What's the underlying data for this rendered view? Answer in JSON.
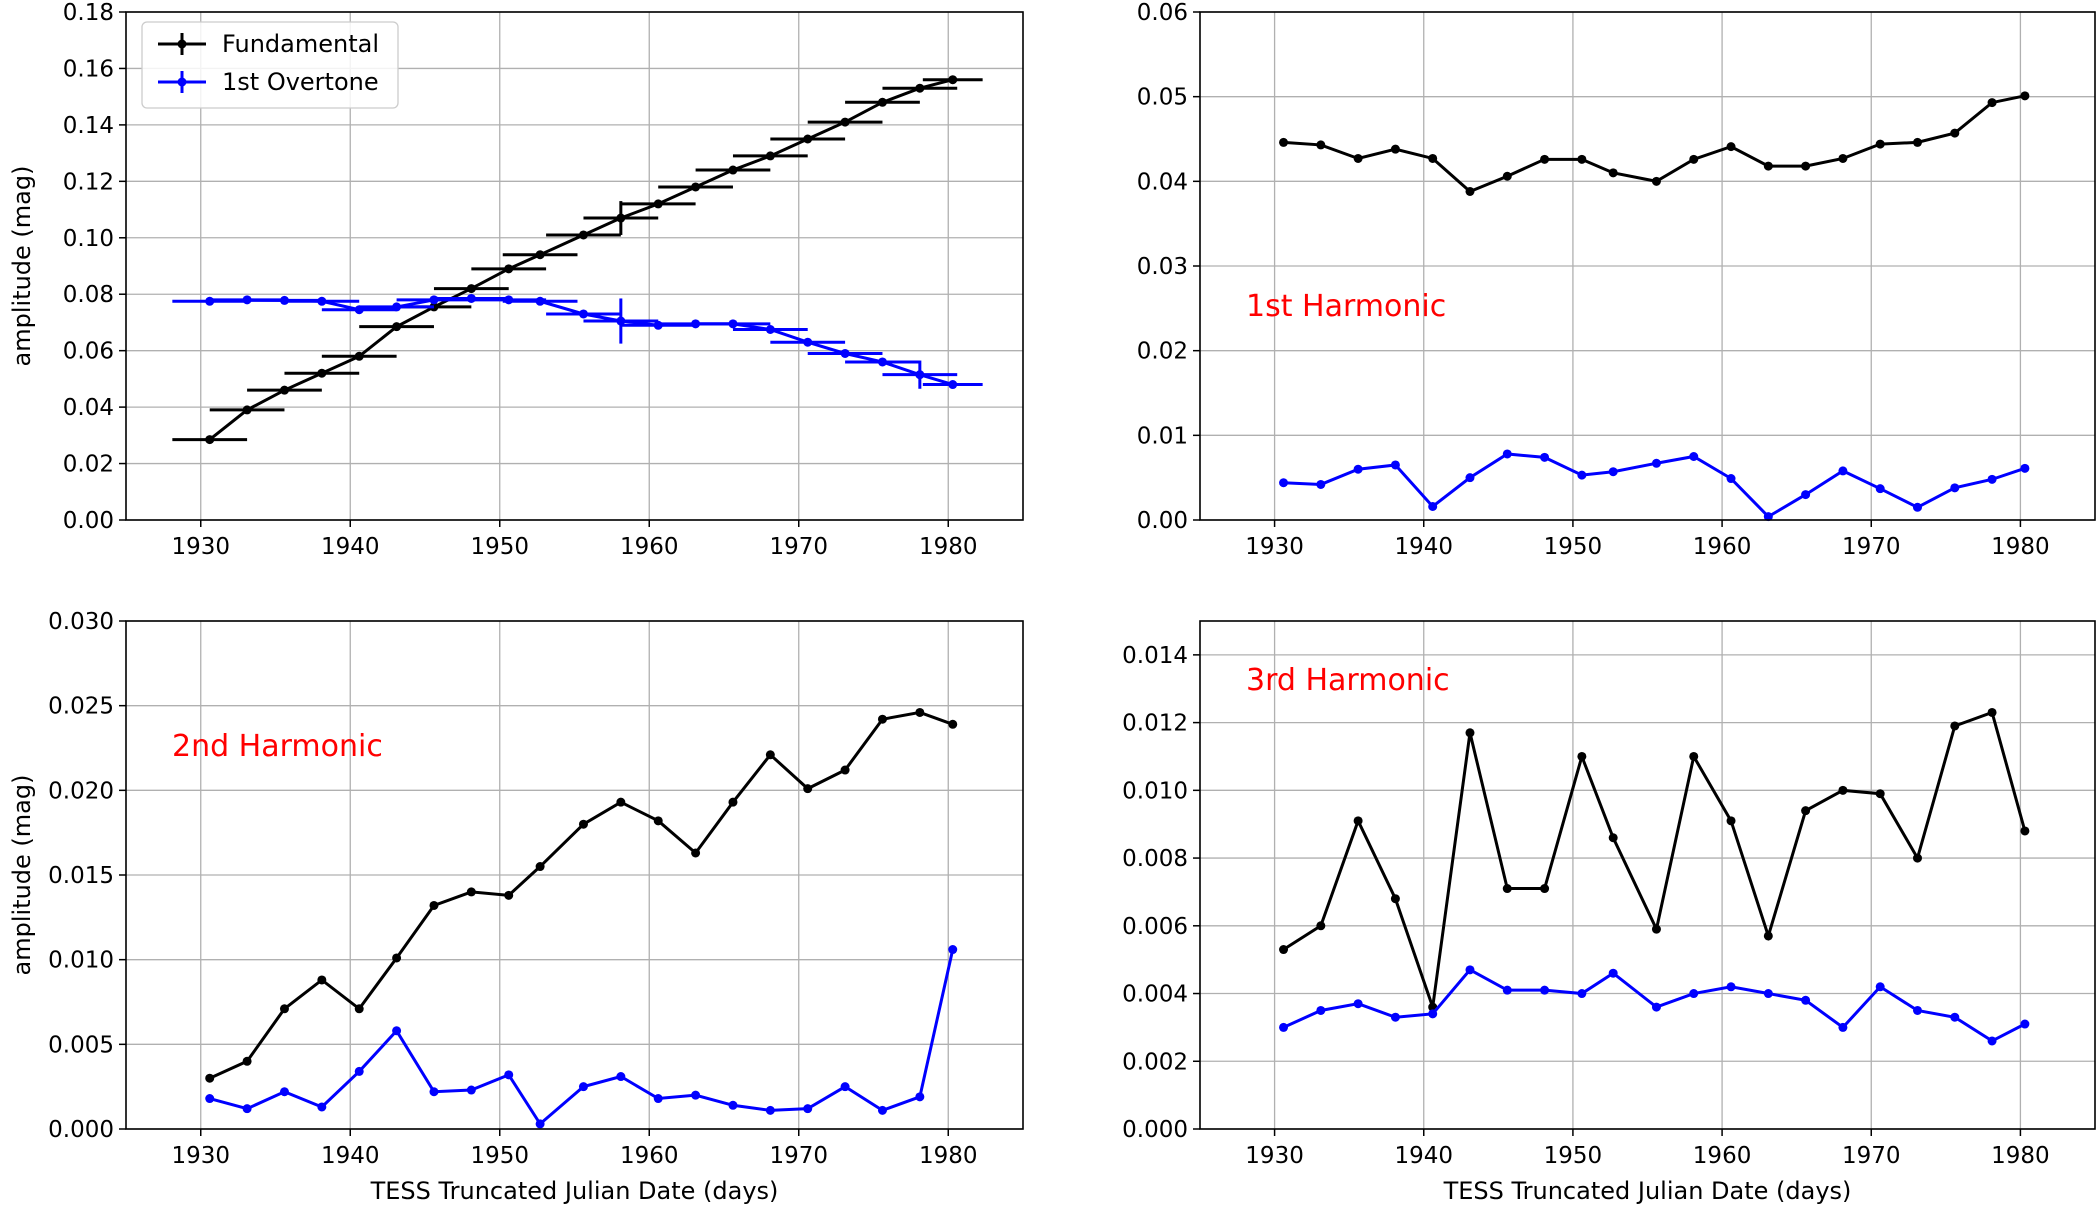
{
  "figure": {
    "legend": {
      "placement": "upper-left of first panel",
      "entries": [
        {
          "label": "Fundamental",
          "color": "#000000"
        },
        {
          "label": "1st Overtone",
          "color": "#0000ff"
        }
      ]
    }
  },
  "chart_data": [
    {
      "type": "line",
      "panel": "top-left",
      "title": "",
      "annotation": "",
      "xlabel": "",
      "ylabel": "amplitude (mag)",
      "xlim": [
        1925,
        1985
      ],
      "ylim": [
        0,
        0.18
      ],
      "xticks": [
        1930,
        1940,
        1950,
        1960,
        1970,
        1980
      ],
      "xtick_labels": [
        "1930",
        "1940",
        "1950",
        "1960",
        "1970",
        "1980"
      ],
      "yticks": [
        0,
        0.02,
        0.04,
        0.06,
        0.08,
        0.1,
        0.12,
        0.14,
        0.16,
        0.18
      ],
      "ytick_labels": [
        "0.00",
        "0.02",
        "0.04",
        "0.06",
        "0.08",
        "0.10",
        "0.12",
        "0.14",
        "0.16",
        "0.18"
      ],
      "grid": true,
      "legend": true,
      "x": [
        1930.6,
        1933.1,
        1935.6,
        1938.1,
        1940.6,
        1943.1,
        1945.6,
        1948.1,
        1950.6,
        1952.7,
        1955.6,
        1958.1,
        1960.6,
        1963.1,
        1965.6,
        1968.1,
        1970.6,
        1973.1,
        1975.6,
        1978.1,
        1980.3
      ],
      "xerr": [
        2.5,
        2.5,
        2.5,
        2.5,
        2.5,
        2.5,
        2.5,
        2.5,
        2.5,
        2.5,
        2.5,
        2.5,
        2.5,
        2.5,
        2.5,
        2.5,
        2.5,
        2.5,
        2.5,
        2.5,
        2.0
      ],
      "series": [
        {
          "name": "Fundamental",
          "color": "#000000",
          "values": [
            0.0285,
            0.039,
            0.046,
            0.052,
            0.058,
            0.0685,
            0.0755,
            0.082,
            0.089,
            0.094,
            0.101,
            0.107,
            0.112,
            0.118,
            0.124,
            0.129,
            0.135,
            0.141,
            0.148,
            0.153,
            0.156
          ],
          "yerr": [
            0,
            0,
            0,
            0,
            0,
            0,
            0,
            0,
            0,
            0,
            0,
            0.006,
            0,
            0,
            0,
            0,
            0,
            0,
            0,
            0,
            0
          ]
        },
        {
          "name": "1st Overtone",
          "color": "#0000ff",
          "values": [
            0.0775,
            0.078,
            0.0778,
            0.0775,
            0.0745,
            0.0755,
            0.078,
            0.0785,
            0.078,
            0.0775,
            0.073,
            0.0705,
            0.069,
            0.0695,
            0.0695,
            0.0675,
            0.063,
            0.059,
            0.056,
            0.0515,
            0.048
          ],
          "yerr": [
            0,
            0,
            0,
            0,
            0,
            0,
            0,
            0,
            0,
            0,
            0,
            0.008,
            0,
            0,
            0,
            0,
            0,
            0,
            0,
            0.005,
            0
          ]
        }
      ]
    },
    {
      "type": "line",
      "panel": "top-right",
      "title": "",
      "annotation": "1st Harmonic",
      "xlabel": "",
      "ylabel": "",
      "xlim": [
        1925,
        1985
      ],
      "ylim": [
        0,
        0.06
      ],
      "xticks": [
        1930,
        1940,
        1950,
        1960,
        1970,
        1980
      ],
      "xtick_labels": [
        "1930",
        "1940",
        "1950",
        "1960",
        "1970",
        "1980"
      ],
      "yticks": [
        0,
        0.01,
        0.02,
        0.03,
        0.04,
        0.05,
        0.06
      ],
      "ytick_labels": [
        "0.00",
        "0.01",
        "0.02",
        "0.03",
        "0.04",
        "0.05",
        "0.06"
      ],
      "grid": true,
      "x": [
        1930.6,
        1933.1,
        1935.6,
        1938.1,
        1940.6,
        1943.1,
        1945.6,
        1948.1,
        1950.6,
        1952.7,
        1955.6,
        1958.1,
        1960.6,
        1963.1,
        1965.6,
        1968.1,
        1970.6,
        1973.1,
        1975.6,
        1978.1,
        1980.3
      ],
      "series": [
        {
          "name": "Fundamental",
          "color": "#000000",
          "values": [
            0.0446,
            0.0443,
            0.0427,
            0.0438,
            0.0427,
            0.0388,
            0.0406,
            0.0426,
            0.0426,
            0.041,
            0.04,
            0.0426,
            0.0441,
            0.0418,
            0.0418,
            0.0427,
            0.0444,
            0.0446,
            0.0457,
            0.0493,
            0.0501
          ]
        },
        {
          "name": "1st Overtone",
          "color": "#0000ff",
          "values": [
            0.0044,
            0.0042,
            0.006,
            0.0065,
            0.0016,
            0.005,
            0.0078,
            0.0074,
            0.0053,
            0.0057,
            0.0067,
            0.0075,
            0.0049,
            0.0004,
            0.003,
            0.0058,
            0.0037,
            0.0015,
            0.0038,
            0.0048,
            0.0061
          ]
        }
      ]
    },
    {
      "type": "line",
      "panel": "bottom-left",
      "title": "",
      "annotation": "2nd Harmonic",
      "xlabel": "TESS Truncated Julian Date (days)",
      "ylabel": "amplitude (mag)",
      "xlim": [
        1925,
        1985
      ],
      "ylim": [
        0,
        0.03
      ],
      "xticks": [
        1930,
        1940,
        1950,
        1960,
        1970,
        1980
      ],
      "xtick_labels": [
        "1930",
        "1940",
        "1950",
        "1960",
        "1970",
        "1980"
      ],
      "yticks": [
        0,
        0.005,
        0.01,
        0.015,
        0.02,
        0.025,
        0.03
      ],
      "ytick_labels": [
        "0.000",
        "0.005",
        "0.010",
        "0.015",
        "0.020",
        "0.025",
        "0.030"
      ],
      "grid": true,
      "x": [
        1930.6,
        1933.1,
        1935.6,
        1938.1,
        1940.6,
        1943.1,
        1945.6,
        1948.1,
        1950.6,
        1952.7,
        1955.6,
        1958.1,
        1960.6,
        1963.1,
        1965.6,
        1968.1,
        1970.6,
        1973.1,
        1975.6,
        1978.1,
        1980.3
      ],
      "series": [
        {
          "name": "Fundamental",
          "color": "#000000",
          "values": [
            0.003,
            0.004,
            0.0071,
            0.0088,
            0.0071,
            0.0101,
            0.0132,
            0.014,
            0.0138,
            0.0155,
            0.018,
            0.0193,
            0.0182,
            0.0163,
            0.0193,
            0.0221,
            0.0201,
            0.0212,
            0.0242,
            0.0246,
            0.0239
          ]
        },
        {
          "name": "1st Overtone",
          "color": "#0000ff",
          "values": [
            0.0018,
            0.0012,
            0.0022,
            0.0013,
            0.0034,
            0.0058,
            0.0022,
            0.0023,
            0.0032,
            0.0003,
            0.0025,
            0.0031,
            0.0018,
            0.002,
            0.0014,
            0.0011,
            0.0012,
            0.0025,
            0.0011,
            0.0019,
            0.0106
          ]
        }
      ]
    },
    {
      "type": "line",
      "panel": "bottom-right",
      "title": "",
      "annotation": "3rd Harmonic",
      "xlabel": "TESS Truncated Julian Date (days)",
      "ylabel": "",
      "xlim": [
        1925,
        1985
      ],
      "ylim": [
        0,
        0.015
      ],
      "xticks": [
        1930,
        1940,
        1950,
        1960,
        1970,
        1980
      ],
      "xtick_labels": [
        "1930",
        "1940",
        "1950",
        "1960",
        "1970",
        "1980"
      ],
      "yticks": [
        0,
        0.002,
        0.004,
        0.006,
        0.008,
        0.01,
        0.012,
        0.014
      ],
      "ytick_labels": [
        "0.000",
        "0.002",
        "0.004",
        "0.006",
        "0.008",
        "0.010",
        "0.012",
        "0.014"
      ],
      "grid": true,
      "x": [
        1930.6,
        1933.1,
        1935.6,
        1938.1,
        1940.6,
        1943.1,
        1945.6,
        1948.1,
        1950.6,
        1952.7,
        1955.6,
        1958.1,
        1960.6,
        1963.1,
        1965.6,
        1968.1,
        1970.6,
        1973.1,
        1975.6,
        1978.1,
        1980.3
      ],
      "series": [
        {
          "name": "Fundamental",
          "color": "#000000",
          "values": [
            0.0053,
            0.006,
            0.0091,
            0.0068,
            0.0036,
            0.0117,
            0.0071,
            0.0071,
            0.011,
            0.0086,
            0.0059,
            0.011,
            0.0091,
            0.0057,
            0.0094,
            0.01,
            0.0099,
            0.008,
            0.0119,
            0.0123,
            0.0088
          ]
        },
        {
          "name": "1st Overtone",
          "color": "#0000ff",
          "values": [
            0.003,
            0.0035,
            0.0037,
            0.0033,
            0.0034,
            0.0047,
            0.0041,
            0.0041,
            0.004,
            0.0046,
            0.0036,
            0.004,
            0.0042,
            0.004,
            0.0038,
            0.003,
            0.0042,
            0.0035,
            0.0033,
            0.0026,
            0.0031
          ]
        }
      ]
    }
  ]
}
